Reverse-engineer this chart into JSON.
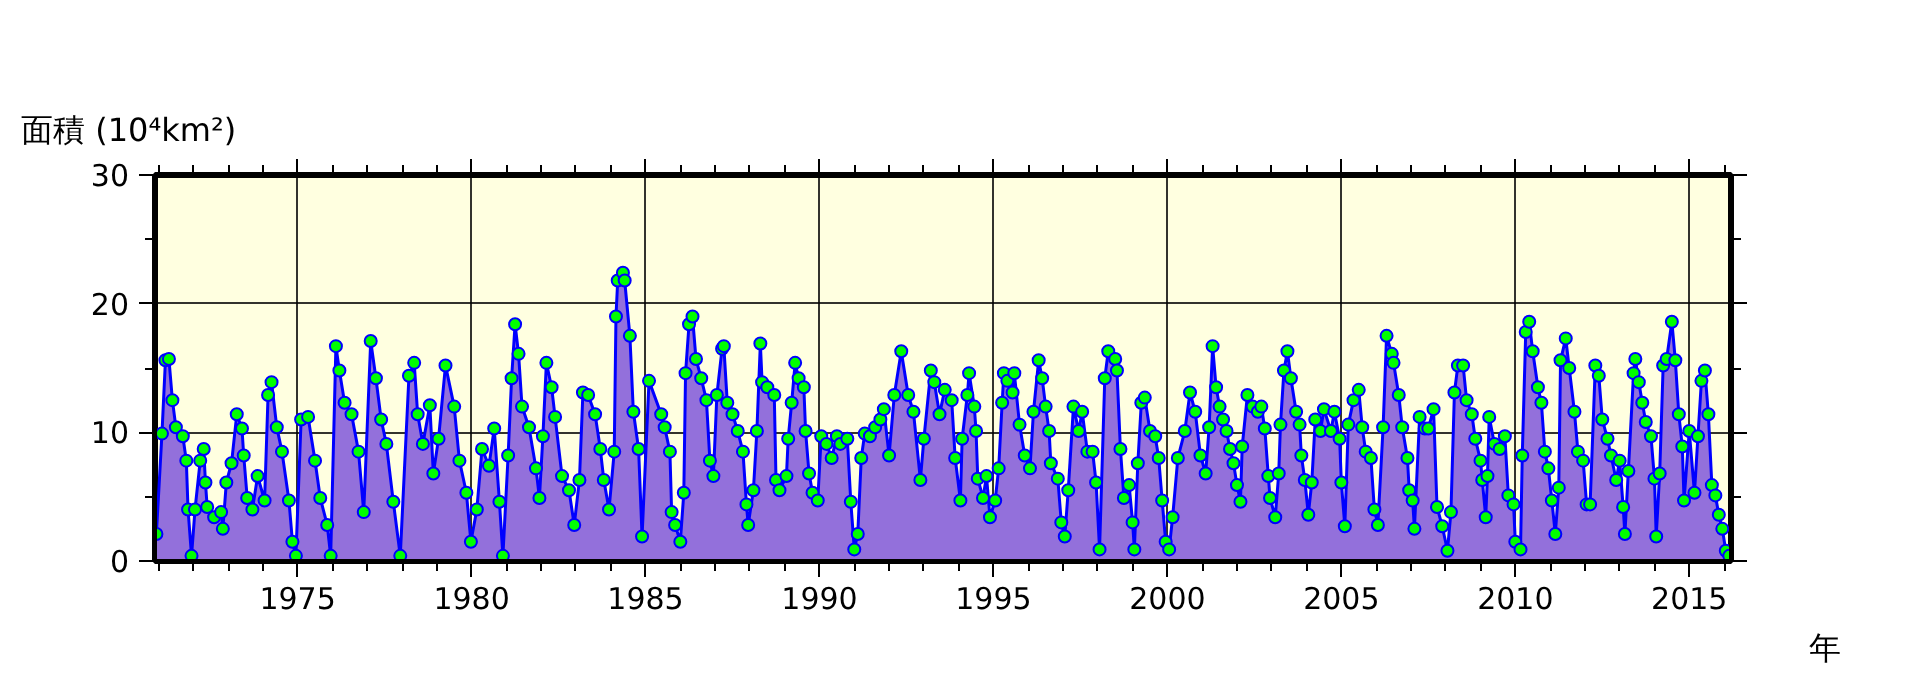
{
  "chart_data": {
    "type": "area",
    "ylabel": "面積 (10⁴km²)",
    "xlabel": "年",
    "xlim": [
      1970.9,
      2016.2
    ],
    "ylim": [
      0,
      30
    ],
    "xticks": [
      {
        "value": 1971,
        "label": null
      },
      {
        "value": 1972,
        "label": null
      },
      {
        "value": 1973,
        "label": null
      },
      {
        "value": 1974,
        "label": null
      },
      1975,
      {
        "value": 1976,
        "label": null
      },
      {
        "value": 1977,
        "label": null
      },
      {
        "value": 1978,
        "label": null
      },
      {
        "value": 1979,
        "label": null
      },
      1980,
      {
        "value": 1981,
        "label": null
      },
      {
        "value": 1982,
        "label": null
      },
      {
        "value": 1983,
        "label": null
      },
      {
        "value": 1984,
        "label": null
      },
      1985,
      {
        "value": 1986,
        "label": null
      },
      {
        "value": 1987,
        "label": null
      },
      {
        "value": 1988,
        "label": null
      },
      {
        "value": 1989,
        "label": null
      },
      1990,
      {
        "value": 1991,
        "label": null
      },
      {
        "value": 1992,
        "label": null
      },
      {
        "value": 1993,
        "label": null
      },
      {
        "value": 1994,
        "label": null
      },
      1995,
      {
        "value": 1996,
        "label": null
      },
      {
        "value": 1997,
        "label": null
      },
      {
        "value": 1998,
        "label": null
      },
      {
        "value": 1999,
        "label": null
      },
      2000,
      {
        "value": 2001,
        "label": null
      },
      {
        "value": 2002,
        "label": null
      },
      {
        "value": 2003,
        "label": null
      },
      {
        "value": 2004,
        "label": null
      },
      2005,
      {
        "value": 2006,
        "label": null
      },
      {
        "value": 2007,
        "label": null
      },
      {
        "value": 2008,
        "label": null
      },
      {
        "value": 2009,
        "label": null
      },
      2010,
      {
        "value": 2011,
        "label": null
      },
      {
        "value": 2012,
        "label": null
      },
      {
        "value": 2013,
        "label": null
      },
      {
        "value": 2014,
        "label": null
      },
      2015,
      {
        "value": 2016,
        "label": null
      }
    ],
    "yticks": [
      0,
      {
        "value": 5,
        "label": null
      },
      10,
      {
        "value": 15,
        "label": null
      },
      20,
      {
        "value": 25,
        "label": null
      },
      30
    ],
    "grid": true,
    "marker": "circle",
    "line_style": "solid",
    "x": [
      1970.94,
      1971.1,
      1971.2,
      1971.3,
      1971.4,
      1971.5,
      1971.7,
      1971.8,
      1971.85,
      1971.95,
      1972.05,
      1972.2,
      1972.3,
      1972.35,
      1972.4,
      1972.6,
      1972.8,
      1972.85,
      1972.95,
      1973.1,
      1973.25,
      1973.4,
      1973.45,
      1973.55,
      1973.7,
      1973.85,
      1974.05,
      1974.15,
      1974.25,
      1974.4,
      1974.55,
      1974.75,
      1974.85,
      1974.95,
      1975.1,
      1975.3,
      1975.5,
      1975.65,
      1975.85,
      1975.95,
      1976.1,
      1976.2,
      1976.35,
      1976.55,
      1976.75,
      1976.9,
      1977.1,
      1977.25,
      1977.4,
      1977.55,
      1977.75,
      1977.95,
      1978.2,
      1978.35,
      1978.45,
      1978.6,
      1978.8,
      1978.9,
      1979.05,
      1979.25,
      1979.5,
      1979.65,
      1979.85,
      1979.98,
      1980.15,
      1980.3,
      1980.5,
      1980.65,
      1980.8,
      1980.9,
      1981.05,
      1981.15,
      1981.25,
      1981.35,
      1981.45,
      1981.65,
      1981.85,
      1981.95,
      1982.05,
      1982.15,
      1982.3,
      1982.4,
      1982.6,
      1982.8,
      1982.95,
      1983.1,
      1983.2,
      1983.35,
      1983.55,
      1983.7,
      1983.8,
      1983.95,
      1984.1,
      1984.15,
      1984.2,
      1984.35,
      1984.4,
      1984.55,
      1984.65,
      1984.8,
      1984.9,
      1985.1,
      1985.45,
      1985.55,
      1985.7,
      1985.75,
      1985.85,
      1986.0,
      1986.1,
      1986.15,
      1986.25,
      1986.35,
      1986.45,
      1986.6,
      1986.75,
      1986.85,
      1986.95,
      1987.05,
      1987.2,
      1987.25,
      1987.35,
      1987.5,
      1987.65,
      1987.8,
      1987.9,
      1987.95,
      1988.1,
      1988.2,
      1988.3,
      1988.35,
      1988.5,
      1988.7,
      1988.75,
      1988.85,
      1989.05,
      1989.1,
      1989.2,
      1989.3,
      1989.4,
      1989.55,
      1989.6,
      1989.7,
      1989.8,
      1989.95,
      1990.05,
      1990.2,
      1990.35,
      1990.5,
      1990.6,
      1990.8,
      1990.9,
      1991.0,
      1991.1,
      1991.2,
      1991.3,
      1991.45,
      1991.6,
      1991.75,
      1991.85,
      1992.0,
      1992.15,
      1992.35,
      1992.55,
      1992.7,
      1992.9,
      1993.0,
      1993.2,
      1993.3,
      1993.45,
      1993.6,
      1993.8,
      1993.9,
      1994.05,
      1994.1,
      1994.25,
      1994.3,
      1994.45,
      1994.5,
      1994.55,
      1994.7,
      1994.8,
      1994.9,
      1995.05,
      1995.15,
      1995.25,
      1995.3,
      1995.4,
      1995.55,
      1995.6,
      1995.75,
      1995.9,
      1996.05,
      1996.15,
      1996.3,
      1996.4,
      1996.5,
      1996.6,
      1996.65,
      1996.85,
      1996.95,
      1997.05,
      1997.15,
      1997.3,
      1997.45,
      1997.55,
      1997.7,
      1997.85,
      1997.95,
      1998.05,
      1998.2,
      1998.3,
      1998.5,
      1998.55,
      1998.65,
      1998.75,
      1998.9,
      1999.0,
      1999.05,
      1999.15,
      1999.25,
      1999.35,
      1999.5,
      1999.65,
      1999.75,
      1999.85,
      1999.95,
      2000.05,
      2000.15,
      2000.3,
      2000.5,
      2000.65,
      2000.8,
      2000.95,
      2001.1,
      2001.2,
      2001.3,
      2001.4,
      2001.5,
      2001.6,
      2001.7,
      2001.8,
      2001.9,
      2002.0,
      2002.1,
      2002.15,
      2002.3,
      2002.45,
      2002.6,
      2002.7,
      2002.8,
      2002.9,
      2002.95,
      2003.1,
      2003.2,
      2003.25,
      2003.35,
      2003.45,
      2003.55,
      2003.7,
      2003.8,
      2003.85,
      2003.95,
      2004.05,
      2004.15,
      2004.25,
      2004.4,
      2004.5,
      2004.7,
      2004.8,
      2004.95,
      2005.0,
      2005.1,
      2005.2,
      2005.35,
      2005.5,
      2005.6,
      2005.7,
      2005.85,
      2005.95,
      2006.05,
      2006.2,
      2006.3,
      2006.45,
      2006.5,
      2006.65,
      2006.75,
      2006.9,
      2006.95,
      2007.05,
      2007.1,
      2007.25,
      2007.4,
      2007.5,
      2007.65,
      2007.75,
      2007.9,
      2008.05,
      2008.15,
      2008.25,
      2008.35,
      2008.5,
      2008.6,
      2008.75,
      2008.85,
      2009.0,
      2009.05,
      2009.15,
      2009.2,
      2009.25,
      2009.4,
      2009.55,
      2009.7,
      2009.8,
      2009.95,
      2010.0,
      2010.15,
      2010.2,
      2010.3,
      2010.4,
      2010.5,
      2010.65,
      2010.75,
      2010.85,
      2010.95,
      2011.05,
      2011.15,
      2011.25,
      2011.3,
      2011.45,
      2011.55,
      2011.7,
      2011.8,
      2011.95,
      2012.05,
      2012.15,
      2012.3,
      2012.4,
      2012.5,
      2012.65,
      2012.75,
      2012.9,
      2013.0,
      2013.1,
      2013.15,
      2013.25,
      2013.4,
      2013.45,
      2013.55,
      2013.65,
      2013.75,
      2013.9,
      2014.0,
      2014.05,
      2014.15,
      2014.25,
      2014.35,
      2014.5,
      2014.6,
      2014.7,
      2014.8,
      2014.85,
      2015.0,
      2015.15,
      2015.25,
      2015.35,
      2015.45,
      2015.55,
      2015.65,
      2015.75,
      2015.85,
      2015.95,
      2016.05,
      2016.15
    ],
    "series": [
      {
        "color": "#9370db",
        "values": [
          2.1,
          9.9,
          15.6,
          15.7,
          12.5,
          10.4,
          9.7,
          7.8,
          4.0,
          0.4,
          4.0,
          7.8,
          8.7,
          6.1,
          4.2,
          3.4,
          3.8,
          2.5,
          6.1,
          7.6,
          11.4,
          10.3,
          8.2,
          4.9,
          4.0,
          6.6,
          4.7,
          12.9,
          13.9,
          10.4,
          8.5,
          4.7,
          1.5,
          0.4,
          11.0,
          11.2,
          7.8,
          4.9,
          2.8,
          0.4,
          16.7,
          14.8,
          12.3,
          11.4,
          8.5,
          3.8,
          17.1,
          14.2,
          11.0,
          9.1,
          4.6,
          0.4,
          14.4,
          15.4,
          11.4,
          9.1,
          12.1,
          6.8,
          9.5,
          15.2,
          12.0,
          7.8,
          5.3,
          1.5,
          4.0,
          8.7,
          7.4,
          10.3,
          4.6,
          0.4,
          8.2,
          14.2,
          18.4,
          16.1,
          12.0,
          10.4,
          7.2,
          4.9,
          9.7,
          15.4,
          13.5,
          11.2,
          6.6,
          5.5,
          2.8,
          6.3,
          13.1,
          12.9,
          11.4,
          8.7,
          6.3,
          4.0,
          8.5,
          19.0,
          21.8,
          22.4,
          21.8,
          17.5,
          11.6,
          8.7,
          1.9,
          14.0,
          11.4,
          10.4,
          8.5,
          3.8,
          2.8,
          1.5,
          5.3,
          14.6,
          18.4,
          19.0,
          15.7,
          14.2,
          12.5,
          7.8,
          6.6,
          12.9,
          16.5,
          16.7,
          12.3,
          11.4,
          10.1,
          8.5,
          4.4,
          2.8,
          5.5,
          10.1,
          16.9,
          13.9,
          13.5,
          12.9,
          6.3,
          5.5,
          6.6,
          9.5,
          12.3,
          15.4,
          14.2,
          13.5,
          10.1,
          6.8,
          5.3,
          4.7,
          9.7,
          9.1,
          8.0,
          9.7,
          9.1,
          9.5,
          4.6,
          0.9,
          2.1,
          8.0,
          9.9,
          9.7,
          10.4,
          11.0,
          11.8,
          8.2,
          12.9,
          16.3,
          12.9,
          11.6,
          6.3,
          9.5,
          14.8,
          13.9,
          11.4,
          13.3,
          12.5,
          8.0,
          4.7,
          9.5,
          12.9,
          14.6,
          12.0,
          10.1,
          6.4,
          4.9,
          6.6,
          3.4,
          4.7,
          7.2,
          12.3,
          14.6,
          14.0,
          13.1,
          14.6,
          10.6,
          8.2,
          7.2,
          11.6,
          15.6,
          14.2,
          12.0,
          10.1,
          7.6,
          6.4,
          3.0,
          1.9,
          5.5,
          12.0,
          10.1,
          11.6,
          8.5,
          8.5,
          6.1,
          0.9,
          14.2,
          16.3,
          15.7,
          14.8,
          8.7,
          4.9,
          5.9,
          3.0,
          0.9,
          7.6,
          12.3,
          12.7,
          10.1,
          9.7,
          8.0,
          4.7,
          1.5,
          0.9,
          3.4,
          8.0,
          10.1,
          13.1,
          11.6,
          8.2,
          6.8,
          10.4,
          16.7,
          13.5,
          12.0,
          11.0,
          10.1,
          8.7,
          7.6,
          5.9,
          4.6,
          8.9,
          12.9,
          12.0,
          11.6,
          12.0,
          10.3,
          6.6,
          4.9,
          3.4,
          6.8,
          10.6,
          14.8,
          16.3,
          14.2,
          11.6,
          10.6,
          8.2,
          6.3,
          3.6,
          6.1,
          11.0,
          10.1,
          11.8,
          10.1,
          11.6,
          9.5,
          6.1,
          2.7,
          10.6,
          12.5,
          13.3,
          10.4,
          8.5,
          8.0,
          4.0,
          2.8,
          10.4,
          17.5,
          16.1,
          15.4,
          12.9,
          10.4,
          8.0,
          5.5,
          4.7,
          2.5,
          11.2,
          10.3,
          10.3,
          11.8,
          4.2,
          2.7,
          0.8,
          3.8,
          13.1,
          15.2,
          15.2,
          12.5,
          11.4,
          9.5,
          7.8,
          6.3,
          3.4,
          6.6,
          11.2,
          9.1,
          8.7,
          9.7,
          5.1,
          4.4,
          1.5,
          0.9,
          8.2,
          17.8,
          18.6,
          16.3,
          13.5,
          12.3,
          8.5,
          7.2,
          4.7,
          2.1,
          5.7,
          15.6,
          17.3,
          15.0,
          11.6,
          8.5,
          7.8,
          4.4,
          4.4,
          15.2,
          14.4,
          11.0,
          9.5,
          8.2,
          6.3,
          7.8,
          4.2,
          2.1,
          7.0,
          14.6,
          15.7,
          13.9,
          12.3,
          10.8,
          9.7,
          6.4,
          1.9,
          6.8,
          15.2,
          15.7,
          18.6,
          15.6,
          11.4,
          8.9,
          4.7,
          10.1,
          5.3,
          9.7,
          14.0,
          14.8,
          11.4,
          5.9,
          5.1,
          3.6,
          2.5,
          0.8,
          0.4
        ]
      }
    ]
  }
}
